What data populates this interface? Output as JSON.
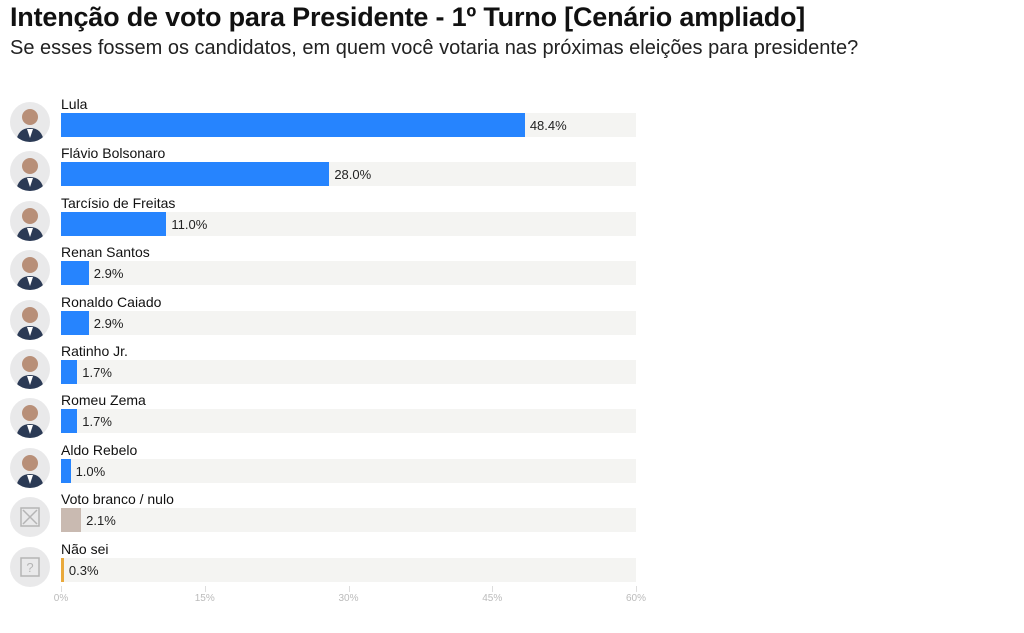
{
  "chart_data": {
    "type": "bar",
    "orientation": "horizontal",
    "title": "Intenção de voto para Presidente - 1º Turno [Cenário ampliado]",
    "subtitle": "Se esses fossem os candidatos, em quem você votaria nas próximas eleições para presidente?",
    "xlim": [
      0,
      60
    ],
    "ticks": [
      "0%",
      "15%",
      "30%",
      "45%",
      "60%"
    ],
    "tick_values": [
      0,
      15,
      30,
      45,
      60
    ],
    "categories": [
      "Lula",
      "Flávio Bolsonaro",
      "Tarcísio de Freitas",
      "Renan Santos",
      "Ronaldo Caiado",
      "Ratinho Jr.",
      "Romeu Zema",
      "Aldo Rebelo",
      "Voto branco / nulo",
      "Não sei"
    ],
    "values": [
      48.4,
      28.0,
      11.0,
      2.9,
      2.9,
      1.7,
      1.7,
      1.0,
      2.1,
      0.3
    ],
    "labels": [
      "48.4%",
      "28.0%",
      "11.0%",
      "2.9%",
      "2.9%",
      "1.7%",
      "1.7%",
      "1.0%",
      "2.1%",
      "0.3%"
    ],
    "colors": [
      "#2684fe",
      "#2684fe",
      "#2684fe",
      "#2684fe",
      "#2684fe",
      "#2684fe",
      "#2684fe",
      "#2684fe",
      "#c9bab1",
      "#e9a93c"
    ],
    "icons": [
      "avatar",
      "avatar",
      "avatar",
      "avatar",
      "avatar",
      "avatar",
      "avatar",
      "avatar",
      "x-box-icon",
      "question-box-icon"
    ]
  }
}
